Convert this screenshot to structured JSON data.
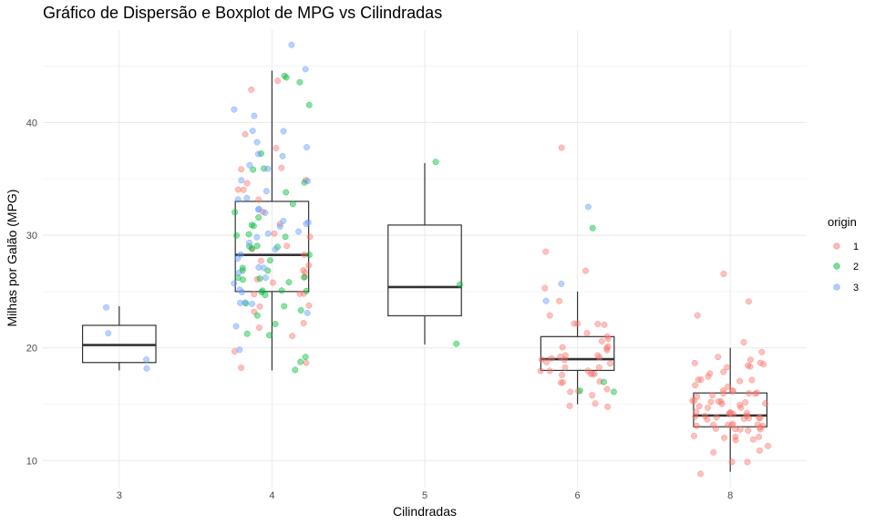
{
  "chart_data": {
    "type": "scatter",
    "overlay": "boxplot",
    "title": "Gráfico de Dispersão e Boxplot de MPG vs Cilindradas",
    "xlabel": "Cilindradas",
    "ylabel": "Milhas por Galão (MPG)",
    "categories": [
      "3",
      "4",
      "5",
      "6",
      "8"
    ],
    "yticks": [
      10,
      20,
      30,
      40
    ],
    "ylim": [
      7.6,
      48.2
    ],
    "grid": true,
    "legend": {
      "title": "origin",
      "position": "right",
      "entries": [
        {
          "label": "1",
          "color": "#F8766D"
        },
        {
          "label": "2",
          "color": "#00BA38"
        },
        {
          "label": "3",
          "color": "#619CFF"
        }
      ]
    },
    "boxes": [
      {
        "category": "3",
        "min": 18.0,
        "q1": 18.7,
        "median": 20.25,
        "q3": 22.0,
        "max": 23.7
      },
      {
        "category": "4",
        "min": 18.0,
        "q1": 25.0,
        "median": 28.25,
        "q3": 33.0,
        "max": 44.6
      },
      {
        "category": "5",
        "min": 20.3,
        "q1": 22.85,
        "median": 25.4,
        "q3": 30.9,
        "max": 36.4
      },
      {
        "category": "6",
        "min": 15.0,
        "q1": 18.0,
        "median": 19.0,
        "q3": 21.0,
        "max": 25.0
      },
      {
        "category": "8",
        "min": 9.0,
        "q1": 13.0,
        "median": 14.0,
        "q3": 16.0,
        "max": 20.0
      }
    ],
    "series": [
      {
        "origin": "1",
        "color": "#F8766D",
        "groups": [
          {
            "category": "4",
            "values": [
              18,
              19,
              20,
              21,
              22,
              22,
              23,
              24,
              24,
              25,
              25,
              25,
              26,
              26,
              26,
              27,
              27,
              27,
              28,
              28,
              29,
              29,
              30,
              30,
              31,
              32,
              33,
              34,
              34,
              34.5,
              35,
              36,
              36.1,
              38,
              39,
              43.1,
              44
            ]
          },
          {
            "category": "6",
            "values": [
              15,
              15,
              15,
              16,
              16,
              16,
              16,
              17,
              17,
              17,
              17.5,
              18,
              18,
              18,
              18,
              18,
              18,
              18.1,
              18.5,
              18.5,
              19,
              19,
              19,
              19,
              19,
              19,
              19.2,
              19.4,
              20,
              20,
              20,
              20.2,
              20.5,
              21,
              21,
              21,
              22,
              22,
              22,
              22.4,
              23,
              24,
              25,
              26.8,
              28.8,
              38
            ]
          },
          {
            "category": "8",
            "values": [
              9,
              10,
              10,
              11,
              11,
              11,
              12,
              12,
              12,
              12,
              12,
              12,
              13,
              13,
              13,
              13,
              13,
              13,
              13,
              13,
              13,
              13,
              13,
              13,
              13,
              14,
              14,
              14,
              14,
              14,
              14,
              14,
              14,
              14,
              14,
              14,
              14,
              14,
              14,
              14,
              15,
              15,
              15,
              15,
              15,
              15,
              15,
              15,
              15,
              15,
              15.5,
              15.5,
              16,
              16,
              16,
              16,
              16,
              16,
              16,
              16,
              16.5,
              16.5,
              16.9,
              17,
              17,
              17,
              17.5,
              17.5,
              17.6,
              18,
              18,
              18.1,
              18.2,
              18.5,
              18.5,
              19,
              19.2,
              19.2,
              19.9,
              20.2,
              23,
              23.9,
              26.6
            ]
          }
        ]
      },
      {
        "origin": "2",
        "color": "#00BA38",
        "groups": [
          {
            "category": "4",
            "values": [
              18,
              19,
              19,
              21,
              21.5,
              22,
              23,
              23,
              24,
              24,
              25,
              25,
              25,
              25,
              25,
              26,
              26,
              26,
              26,
              26,
              27,
              27,
              27,
              28,
              28,
              29,
              29,
              29,
              29,
              29.8,
              30,
              30,
              30.5,
              31,
              31.5,
              32,
              33,
              34,
              35,
              36,
              36,
              37.3,
              41.5,
              43.4,
              44,
              44.3
            ]
          },
          {
            "category": "5",
            "values": [
              20.3,
              25.4,
              36.4
            ]
          },
          {
            "category": "6",
            "values": [
              16.2,
              16.5,
              17,
              30.7
            ]
          }
        ]
      },
      {
        "origin": "3",
        "color": "#619CFF",
        "groups": [
          {
            "category": "3",
            "values": [
              18,
              19,
              21.5,
              23.7
            ]
          },
          {
            "category": "4",
            "values": [
              20,
              22,
              23,
              24,
              24,
              24,
              25,
              25,
              26,
              26,
              27,
              27,
              27.2,
              28,
              28,
              29,
              29,
              29.5,
              30,
              30,
              31,
              31,
              31,
              31.5,
              32,
              32,
              32.2,
              33,
              33,
              34,
              35,
              35,
              36,
              36,
              37,
              37.2,
              38,
              38,
              39,
              39.4,
              40.8,
              41,
              44.6,
              46.6
            ]
          },
          {
            "category": "6",
            "values": [
              24.2,
              25.4,
              32.7
            ]
          }
        ]
      }
    ]
  }
}
